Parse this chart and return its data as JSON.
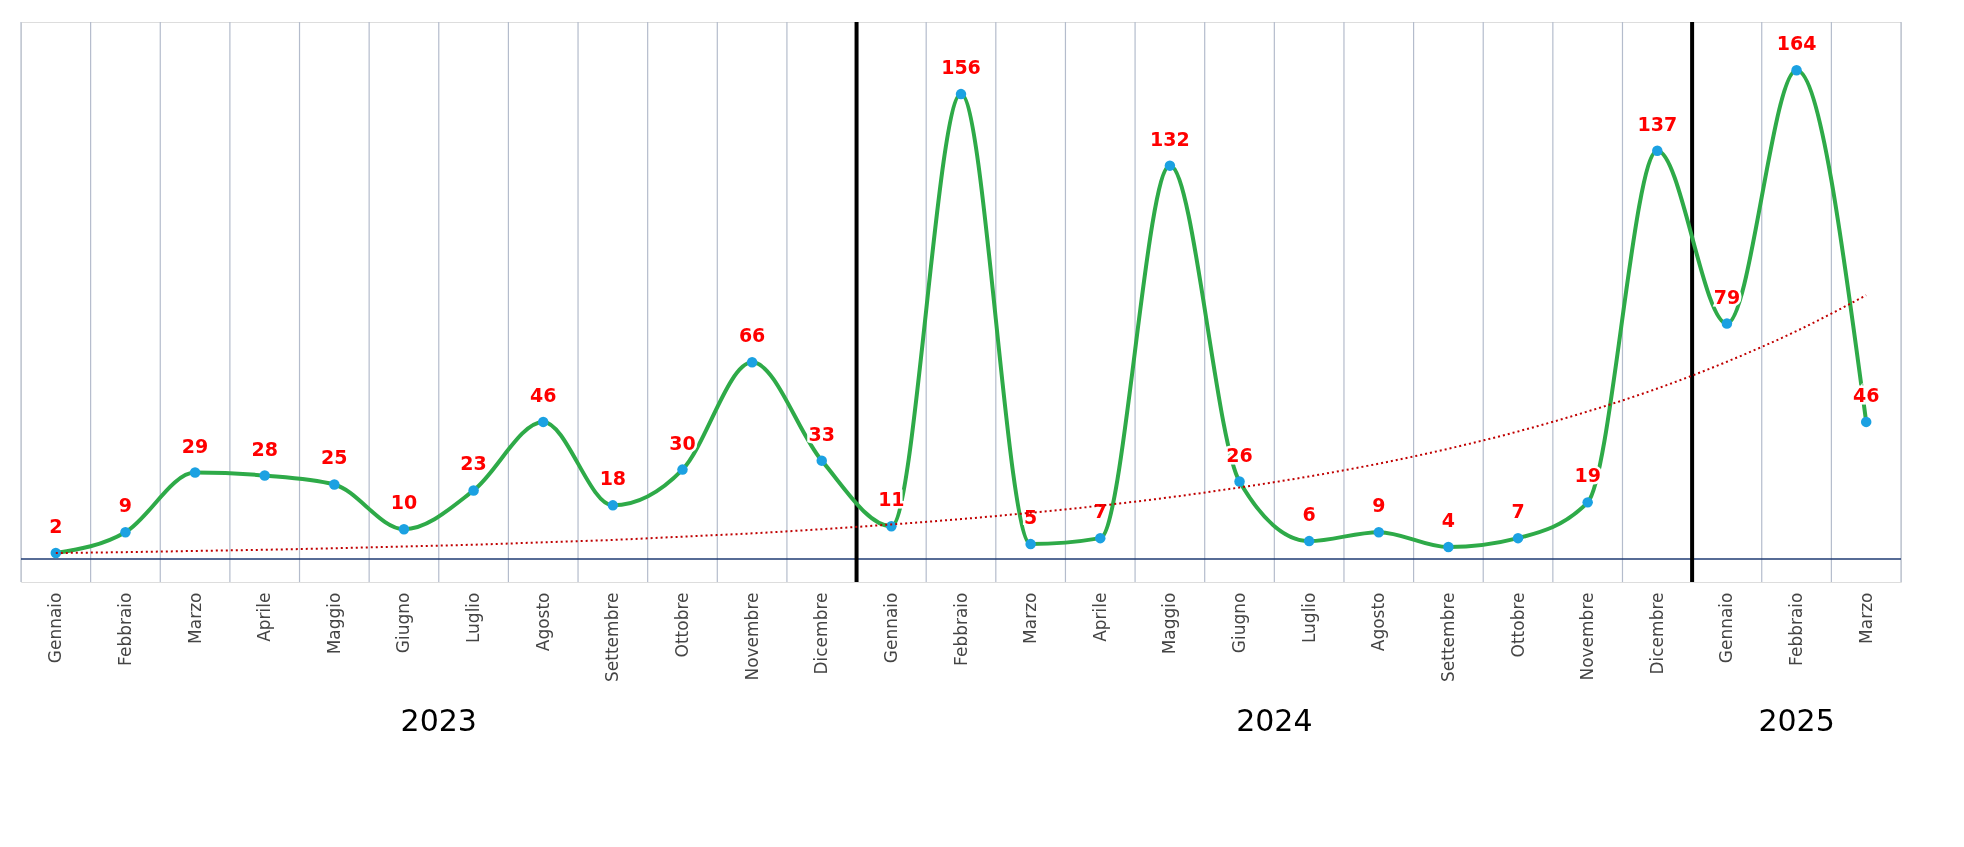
{
  "chart_data": {
    "type": "line",
    "categories": [
      "Gennaio",
      "Febbraio",
      "Marzo",
      "Aprile",
      "Maggio",
      "Giugno",
      "Luglio",
      "Agosto",
      "Settembre",
      "Ottobre",
      "Novembre",
      "Dicembre",
      "Gennaio",
      "Febbraio",
      "Marzo",
      "Aprile",
      "Maggio",
      "Giugno",
      "Luglio",
      "Agosto",
      "Settembre",
      "Ottobre",
      "Novembre",
      "Dicembre",
      "Gennaio",
      "Febbraio",
      "Marzo"
    ],
    "series": [
      {
        "color": "#2eaa48",
        "marker": "circle",
        "line_style": "solid",
        "colors": [
          "#1ba1e2",
          "#1ba1e2",
          "#1ba1e2",
          "#1ba1e2",
          "#1ba1e2",
          "#1ba1e2",
          "#1ba1e2",
          "#1ba1e2",
          "#1ba1e2",
          "#1ba1e2",
          "#1ba1e2",
          "#1ba1e2",
          "#1ba1e2",
          "#1ba1e2",
          "#1ba1e2",
          "#1ba1e2",
          "#1ba1e2",
          "#1ba1e2",
          "#1ba1e2",
          "#1ba1e2",
          "#1ba1e2",
          "#1ba1e2",
          "#1ba1e2",
          "#1ba1e2",
          "#1ba1e2",
          "#1ba1e2",
          "#1ba1e2"
        ],
        "data_labels": true,
        "values": [
          2,
          9,
          29,
          28,
          25,
          10,
          23,
          46,
          18,
          30,
          66,
          33,
          11,
          156,
          5,
          7,
          132,
          26,
          6,
          9,
          4,
          7,
          19,
          137,
          79,
          164,
          46
        ]
      },
      {
        "type": "line",
        "color": "#c00000",
        "marker": "none",
        "line_style": "dotted",
        "values": [
          2,
          2.3,
          2.7,
          3.1,
          3.6,
          4.2,
          4.8,
          5.6,
          6.4,
          7.5,
          8.6,
          10,
          11.6,
          13.4,
          15.5,
          17.9,
          20.7,
          24,
          27.7,
          32,
          37,
          42.8,
          49.5,
          57.2,
          66.2,
          76.5,
          88.5
        ]
      }
    ],
    "annotations": [
      "2023",
      "2024",
      "2025"
    ],
    "grid": "x"
  }
}
